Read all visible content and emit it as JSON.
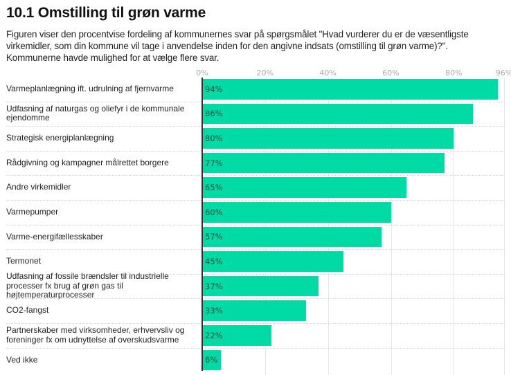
{
  "header": {
    "title": "10.1 Omstilling til grøn varme",
    "subtitle": "Figuren viser den procentvise fordeling af kommunernes svar på spørgsmålet \"Hvad vurderer du er de væsentligste virkemidler, som din kommune vil tage i anvendelse inden for den angivne indsats (omstilling til grøn varme)?\". Kommunerne havde mulighed for at vælge flere svar."
  },
  "chart_data": {
    "type": "bar",
    "orientation": "horizontal",
    "title": "10.1 Omstilling til grøn varme",
    "xlabel": "",
    "ylabel": "",
    "xlim": [
      0,
      96
    ],
    "x_ticks": [
      0,
      20,
      40,
      60,
      80,
      96
    ],
    "x_tick_labels": [
      "0%",
      "20%",
      "40%",
      "60%",
      "80%",
      "96%"
    ],
    "grid": true,
    "bar_color": "#00dba6",
    "categories": [
      "Varmeplanlægning ift. udrulning af fjernvarme",
      "Udfasning af naturgas og oliefyr i de kommunale ejendomme",
      "Strategisk energiplanlægning",
      "Rådgivning og kampagner målrettet borgere",
      "Andre virkemidler",
      "Varmepumper",
      "Varme-energifællesskaber",
      "Termonet",
      "Udfasning af fossile brændsler til industrielle processer fx brug af grøn gas til højtemperaturprocesser",
      "CO2-fangst",
      "Partnerskaber med virksomheder, erhvervsliv og foreninger fx om udnyttelse af overskudsvarme",
      "Ved ikke"
    ],
    "values": [
      94,
      86,
      80,
      77,
      65,
      60,
      57,
      45,
      37,
      33,
      22,
      6
    ],
    "value_labels": [
      "94%",
      "86%",
      "80%",
      "77%",
      "65%",
      "60%",
      "57%",
      "45%",
      "37%",
      "33%",
      "22%",
      "6%"
    ]
  }
}
